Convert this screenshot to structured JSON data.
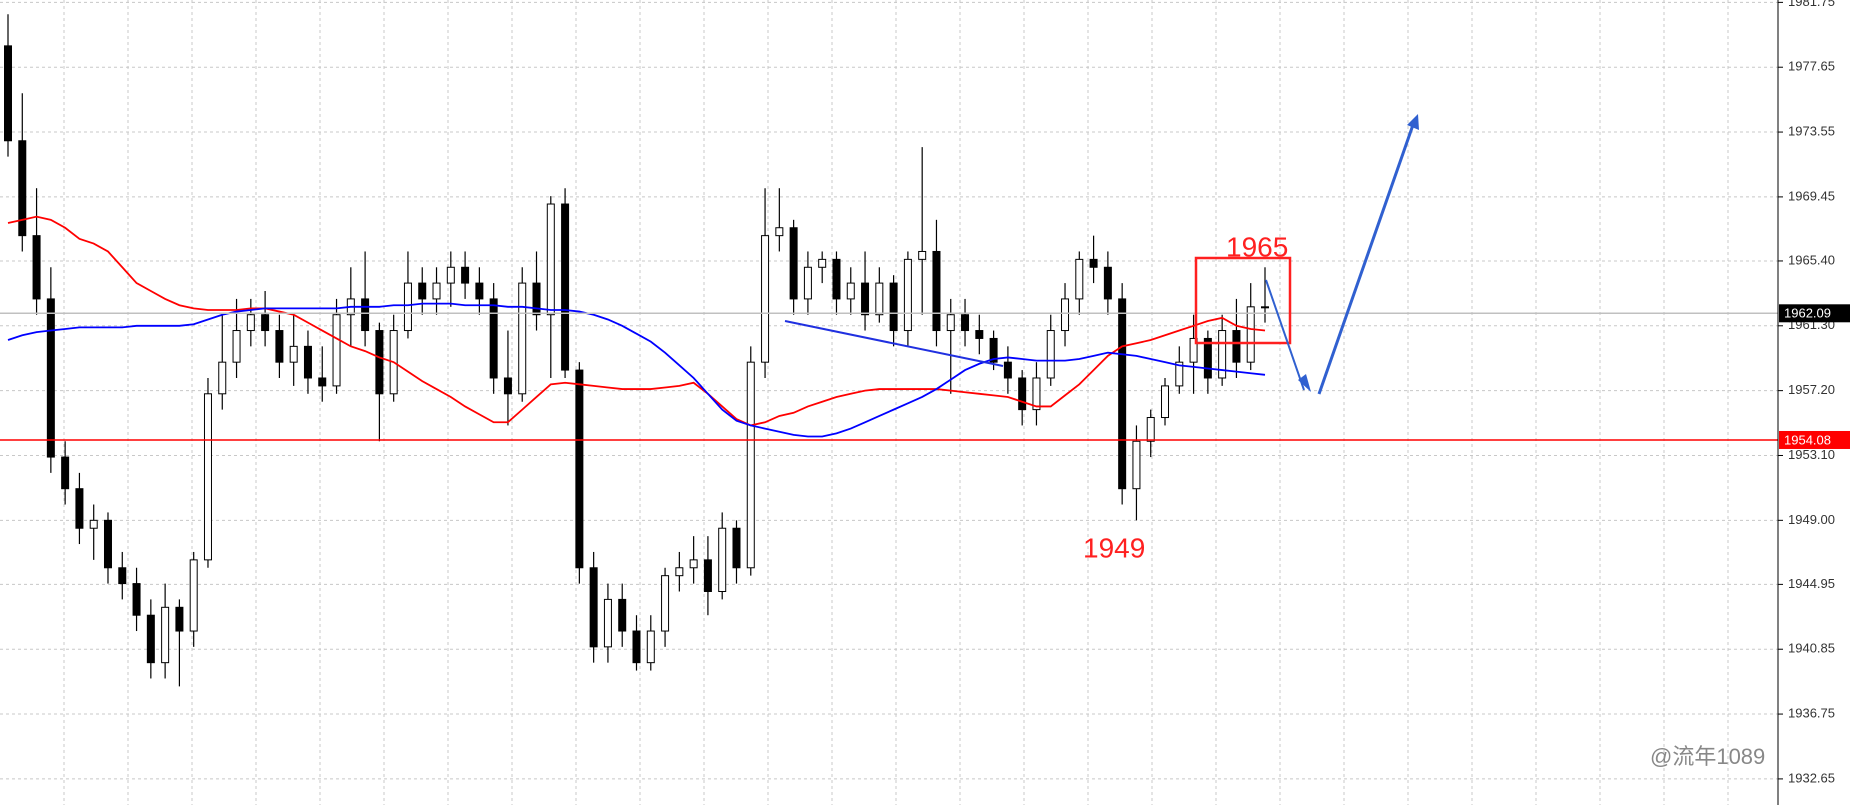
{
  "chart_data": {
    "type": "candlestick",
    "ylim": [
      1931.0,
      1981.9
    ],
    "yticks": [
      1981.75,
      1977.65,
      1973.55,
      1969.45,
      {
        "value": 1965.4,
        "label": "1965.40"
      },
      {
        "value": 1961.3,
        "label": "1961.30"
      },
      {
        "value": 1957.2,
        "label": "1957.20"
      },
      {
        "value": 1953.1,
        "label": "1953.10"
      },
      {
        "value": 1949.0,
        "label": "1949.00"
      },
      1944.95,
      1940.85,
      1936.75,
      1932.65
    ],
    "grid": true,
    "open": [
      1979,
      1973,
      1967,
      1963,
      1953,
      1951,
      1948.5,
      1949,
      1946,
      1945,
      1943,
      1940,
      1943.5,
      1942,
      1946.5,
      1957,
      1959,
      1961,
      1962,
      1961,
      1959,
      1960,
      1958,
      1957.5,
      1962,
      1963,
      1961,
      1957,
      1961,
      1964,
      1963,
      1964,
      1965,
      1964,
      1963,
      1958,
      1957,
      1964,
      1962,
      1969,
      1958.5,
      1946,
      1941,
      1944,
      1942,
      1940,
      1942,
      1945.5,
      1946,
      1946.5,
      1944.5,
      1948.5,
      1946,
      1959,
      1967,
      1967.5,
      1963,
      1965,
      1965.5,
      1963,
      1964,
      1962,
      1964,
      1961,
      1965.5,
      1966,
      1961,
      1962,
      1961,
      1960.5,
      1959,
      1958,
      1956,
      1958,
      1961,
      1963,
      1965.5,
      1965,
      1963,
      1951,
      1954,
      1955.5,
      1957.5,
      1959,
      1960.5,
      1958,
      1961,
      1959,
      1962.5
    ],
    "high": [
      1981,
      1976,
      1970,
      1965,
      1954,
      1952,
      1950,
      1949.5,
      1947,
      1946,
      1944,
      1945,
      1944,
      1947,
      1958,
      1962,
      1963,
      1963,
      1963.5,
      1962,
      1962,
      1961,
      1960,
      1963,
      1965,
      1966,
      1961.5,
      1962,
      1966,
      1965,
      1965,
      1966,
      1966,
      1965,
      1964,
      1961,
      1965,
      1966,
      1969.5,
      1970,
      1959,
      1947,
      1945,
      1945,
      1943,
      1943,
      1946,
      1947,
      1948,
      1948,
      1949.5,
      1949,
      1960,
      1970,
      1970,
      1968,
      1966,
      1966,
      1966,
      1965,
      1966,
      1965,
      1964.5,
      1966,
      1972.6,
      1968,
      1963,
      1963,
      1962,
      1961,
      1960,
      1958.5,
      1959,
      1962,
      1964,
      1966,
      1967,
      1966,
      1964,
      1955,
      1956,
      1958,
      1960,
      1962,
      1961,
      1962,
      1963,
      1964,
      1965
    ],
    "low": [
      1972,
      1966,
      1962,
      1952,
      1950,
      1947.5,
      1946.5,
      1945,
      1944,
      1942,
      1939,
      1939,
      1938.5,
      1941,
      1946,
      1956,
      1958,
      1960,
      1960,
      1958,
      1957.5,
      1957,
      1956.5,
      1957,
      1960,
      1960,
      1954,
      1956.5,
      1960.5,
      1962,
      1962,
      1962.5,
      1963,
      1962,
      1957,
      1955,
      1956.5,
      1961,
      1958,
      1958,
      1945,
      1940,
      1940,
      1941,
      1939.5,
      1939.5,
      1941,
      1944.5,
      1945,
      1943,
      1944,
      1945,
      1945.5,
      1958,
      1966,
      1962,
      1962,
      1964,
      1962,
      1962,
      1961,
      1961.5,
      1960,
      1960,
      1962,
      1960,
      1957,
      1960,
      1959.5,
      1958.5,
      1957,
      1955,
      1955,
      1957.5,
      1960,
      1962,
      1964,
      1962,
      1950,
      1949,
      1953,
      1955,
      1957,
      1957,
      1957,
      1957.5,
      1958,
      1958.5,
      1961.5
    ],
    "close": [
      1973,
      1967,
      1963,
      1953,
      1951,
      1948.5,
      1949,
      1946,
      1945,
      1943,
      1940,
      1943.5,
      1942,
      1946.5,
      1957,
      1959,
      1961,
      1962,
      1961,
      1959,
      1960,
      1958,
      1957.5,
      1962,
      1963,
      1961,
      1957,
      1961,
      1964,
      1963,
      1964,
      1965,
      1964,
      1963,
      1958,
      1957,
      1964,
      1962,
      1969,
      1958.5,
      1946,
      1941,
      1944,
      1942,
      1940,
      1942,
      1945.5,
      1946,
      1946.5,
      1944.5,
      1948.5,
      1946,
      1959,
      1967,
      1967.5,
      1963,
      1965,
      1965.5,
      1963,
      1964,
      1962,
      1964,
      1961,
      1965.5,
      1966,
      1961,
      1962,
      1961,
      1960.5,
      1959,
      1958,
      1956,
      1958,
      1961,
      1963,
      1965.5,
      1965,
      1963,
      1951,
      1954,
      1955.5,
      1957.5,
      1959,
      1960.5,
      1958,
      1961,
      1959,
      1962.5,
      1962.5
    ],
    "series": [
      {
        "color": "#ff0000",
        "values": [
          1967.8,
          1968,
          1968.2,
          1968,
          1967.5,
          1966.8,
          1966.5,
          1966,
          1965,
          1964,
          1963.5,
          1963,
          1962.6,
          1962.4,
          1962.3,
          1962.3,
          1962.3,
          1962.4,
          1962.4,
          1962.2,
          1962,
          1961.5,
          1961,
          1960.5,
          1960,
          1959.7,
          1959.3,
          1959,
          1958.4,
          1957.8,
          1957.3,
          1956.8,
          1956.2,
          1955.7,
          1955.2,
          1955.2,
          1956,
          1956.8,
          1957.6,
          1957.7,
          1957.6,
          1957.5,
          1957.4,
          1957.3,
          1957.3,
          1957.3,
          1957.4,
          1957.5,
          1957.7,
          1957,
          1956.2,
          1955.4,
          1955,
          1955.2,
          1955.6,
          1955.8,
          1956.2,
          1956.5,
          1956.8,
          1957,
          1957.2,
          1957.3,
          1957.3,
          1957.3,
          1957.3,
          1957.3,
          1957.2,
          1957.1,
          1957,
          1956.9,
          1956.8,
          1956.5,
          1956.2,
          1956.2,
          1956.9,
          1957.6,
          1958.5,
          1959.4,
          1960,
          1960.2,
          1960.4,
          1960.7,
          1961,
          1961.3,
          1961.6,
          1961.8,
          1961.3,
          1961.1,
          1961
        ]
      },
      {
        "color": "#0000ff",
        "values": [
          1960.4,
          1960.7,
          1960.9,
          1961,
          1961.1,
          1961.2,
          1961.2,
          1961.2,
          1961.2,
          1961.3,
          1961.3,
          1961.3,
          1961.3,
          1961.4,
          1961.7,
          1962,
          1962.2,
          1962.3,
          1962.4,
          1962.4,
          1962.4,
          1962.4,
          1962.4,
          1962.4,
          1962.5,
          1962.5,
          1962.5,
          1962.6,
          1962.6,
          1962.7,
          1962.7,
          1962.7,
          1962.6,
          1962.6,
          1962.6,
          1962.5,
          1962.5,
          1962.4,
          1962.3,
          1962.3,
          1962.2,
          1962,
          1961.7,
          1961.3,
          1960.8,
          1960.3,
          1959.6,
          1958.8,
          1958,
          1957,
          1956,
          1955.3,
          1955,
          1954.8,
          1954.6,
          1954.4,
          1954.3,
          1954.3,
          1954.5,
          1954.8,
          1955.2,
          1955.6,
          1956,
          1956.4,
          1956.8,
          1957.3,
          1957.9,
          1958.5,
          1958.9,
          1959.2,
          1959.3,
          1959.2,
          1959.1,
          1959.1,
          1959.1,
          1959.2,
          1959.4,
          1959.6,
          1959.5,
          1959.4,
          1959.2,
          1959,
          1958.8,
          1958.7,
          1958.6,
          1958.5,
          1958.4,
          1958.3,
          1958.2
        ]
      }
    ],
    "price_lines": [
      {
        "value": 1962.09,
        "color": "#c0c0c0",
        "label_color": "#000000"
      },
      {
        "value": 1954.08,
        "color": "#ff0000",
        "label_color": "#ff0000"
      }
    ],
    "annotations": [
      "1965",
      "1949"
    ],
    "watermark": "@流年1089"
  }
}
